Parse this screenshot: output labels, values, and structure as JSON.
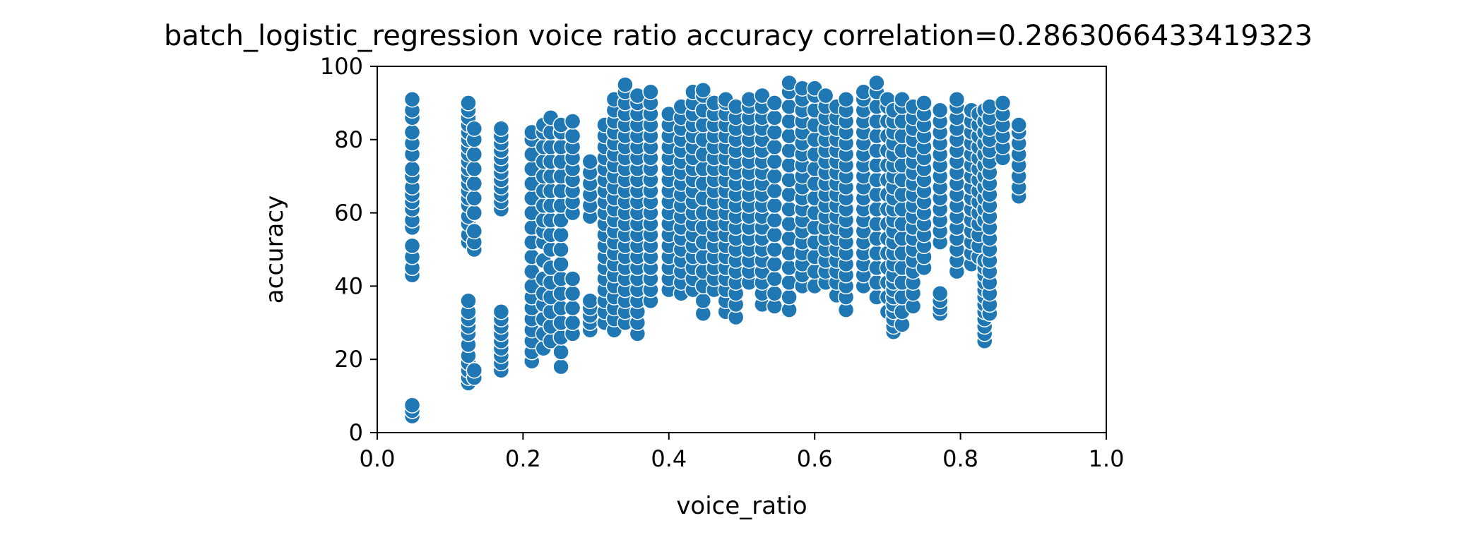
{
  "chart_data": {
    "type": "scatter",
    "title": "batch_logistic_regression voice ratio accuracy correlation=0.2863066433419323",
    "xlabel": "voice_ratio",
    "ylabel": "accuracy",
    "xlim": [
      0.0,
      1.0
    ],
    "ylim": [
      0,
      100
    ],
    "xticks": [
      "0.0",
      "0.2",
      "0.4",
      "0.6",
      "0.8",
      "1.0"
    ],
    "yticks": [
      "0",
      "20",
      "40",
      "60",
      "80",
      "100"
    ],
    "grid": false,
    "legend": "none",
    "colors": {
      "point": "#1f77b4",
      "point_edge": "#ffffff",
      "axes": "#000000"
    },
    "columns": [
      {
        "x": 0.048,
        "y": [
          4.5,
          6,
          7.5,
          43,
          45,
          48,
          51,
          56,
          58,
          61,
          63,
          65,
          67,
          70,
          72,
          76,
          79,
          82,
          86,
          88,
          91
        ]
      },
      {
        "x": 0.125,
        "y": [
          13.5,
          15,
          17,
          19,
          21,
          24,
          27,
          29,
          31,
          33,
          36,
          52,
          54,
          57,
          59,
          62,
          64,
          66,
          68,
          70,
          72,
          74,
          76,
          78,
          80,
          82,
          84,
          86,
          88,
          90
        ]
      },
      {
        "x": 0.133,
        "y": [
          15,
          17,
          50,
          52,
          55,
          60,
          64,
          68,
          72,
          76,
          80,
          83
        ]
      },
      {
        "x": 0.17,
        "y": [
          17,
          19,
          21,
          23,
          25,
          27,
          29,
          31,
          33,
          61,
          63,
          65,
          67,
          69,
          71,
          73,
          75,
          77,
          79,
          81,
          83
        ]
      },
      {
        "x": 0.212,
        "y": [
          19.5,
          22,
          25,
          28,
          31,
          34,
          37,
          40,
          44,
          48,
          52,
          56,
          60,
          64,
          68,
          72,
          76,
          80,
          82
        ]
      },
      {
        "x": 0.228,
        "y": [
          23,
          27,
          31,
          35,
          38,
          42,
          47,
          52,
          55,
          58,
          62,
          66,
          70,
          74,
          78,
          82,
          84
        ]
      },
      {
        "x": 0.238,
        "y": [
          25,
          29,
          33,
          37,
          41,
          45,
          50,
          54,
          58,
          62,
          66,
          70,
          74,
          78,
          82,
          86
        ]
      },
      {
        "x": 0.252,
        "y": [
          18,
          22,
          26,
          30,
          34,
          38,
          42,
          46,
          50,
          54,
          58,
          62,
          66,
          70,
          74,
          78,
          82,
          84
        ]
      },
      {
        "x": 0.268,
        "y": [
          27,
          30,
          34,
          38,
          42,
          60,
          63,
          66,
          69,
          72,
          75,
          78,
          81,
          85
        ]
      },
      {
        "x": 0.292,
        "y": [
          28,
          30,
          32,
          34,
          36,
          59,
          62,
          65,
          68,
          71,
          74
        ]
      },
      {
        "x": 0.312,
        "y": [
          30,
          33,
          36,
          39,
          42,
          45,
          48,
          51,
          54,
          57,
          60,
          63,
          66,
          69,
          72,
          75,
          78,
          81,
          84
        ]
      },
      {
        "x": 0.325,
        "y": [
          28,
          31,
          34,
          37,
          40,
          43,
          46,
          49,
          52,
          55,
          58,
          61,
          64,
          67,
          70,
          73,
          76,
          79,
          82,
          85,
          88,
          91
        ]
      },
      {
        "x": 0.34,
        "y": [
          30,
          33,
          36,
          39,
          42,
          45,
          48,
          51,
          54,
          57,
          60,
          63,
          66,
          69,
          72,
          75,
          78,
          81,
          84,
          87,
          90,
          93,
          95
        ]
      },
      {
        "x": 0.357,
        "y": [
          27,
          30,
          33,
          36,
          39,
          42,
          45,
          48,
          51,
          54,
          57,
          60,
          63,
          66,
          69,
          72,
          75,
          78,
          81,
          84,
          87,
          90,
          92
        ]
      },
      {
        "x": 0.375,
        "y": [
          36,
          39,
          42,
          45,
          48,
          51,
          54,
          57,
          60,
          63,
          66,
          69,
          72,
          75,
          78,
          81,
          84,
          87,
          90,
          93
        ]
      },
      {
        "x": 0.4,
        "y": [
          39,
          42,
          45,
          48,
          51,
          54,
          57,
          60,
          63,
          66,
          69,
          72,
          75,
          78,
          81,
          84,
          87
        ]
      },
      {
        "x": 0.417,
        "y": [
          38,
          41,
          44,
          47,
          50,
          53,
          56,
          59,
          62,
          65,
          68,
          71,
          74,
          77,
          80,
          83,
          86,
          89
        ]
      },
      {
        "x": 0.433,
        "y": [
          39,
          42,
          45,
          48,
          51,
          54,
          57,
          60,
          63,
          66,
          69,
          72,
          75,
          78,
          81,
          84,
          87,
          90,
          93
        ]
      },
      {
        "x": 0.447,
        "y": [
          32.5,
          36,
          40,
          44,
          48,
          52,
          56,
          60,
          64,
          68,
          72,
          76,
          80,
          84,
          88,
          92,
          93.5
        ]
      },
      {
        "x": 0.462,
        "y": [
          39,
          42,
          45,
          48,
          51,
          54,
          57,
          60,
          63,
          66,
          69,
          72,
          75,
          78,
          81,
          84,
          87,
          90
        ]
      },
      {
        "x": 0.478,
        "y": [
          33,
          36,
          39,
          42,
          45,
          48,
          51,
          54,
          57,
          60,
          63,
          66,
          69,
          72,
          75,
          78,
          81,
          84,
          87,
          90,
          91
        ]
      },
      {
        "x": 0.492,
        "y": [
          31.5,
          35,
          38,
          41,
          44,
          47,
          50,
          53,
          56,
          59,
          62,
          65,
          68,
          71,
          74,
          77,
          80,
          83,
          86,
          89
        ]
      },
      {
        "x": 0.51,
        "y": [
          41,
          44,
          47,
          50,
          53,
          56,
          59,
          62,
          65,
          68,
          71,
          74,
          77,
          80,
          83,
          86,
          89,
          91
        ]
      },
      {
        "x": 0.528,
        "y": [
          35,
          38,
          41,
          44,
          47,
          50,
          53,
          56,
          59,
          62,
          65,
          68,
          71,
          74,
          77,
          80,
          83,
          86,
          89,
          92
        ]
      },
      {
        "x": 0.545,
        "y": [
          34.5,
          38,
          42,
          46,
          50,
          54,
          58,
          62,
          66,
          70,
          74,
          78,
          82,
          86,
          90
        ]
      },
      {
        "x": 0.565,
        "y": [
          33.5,
          37,
          41,
          45,
          49,
          53,
          57,
          61,
          65,
          69,
          73,
          77,
          81,
          85,
          89,
          93,
          95.5
        ]
      },
      {
        "x": 0.583,
        "y": [
          40,
          43,
          46,
          49,
          52,
          55,
          58,
          61,
          64,
          67,
          70,
          73,
          76,
          79,
          82,
          85,
          88,
          91,
          94
        ]
      },
      {
        "x": 0.6,
        "y": [
          40,
          44,
          48,
          52,
          56,
          60,
          64,
          68,
          72,
          76,
          80,
          84,
          88,
          92,
          94
        ]
      },
      {
        "x": 0.615,
        "y": [
          41,
          44,
          47,
          50,
          53,
          56,
          59,
          62,
          65,
          68,
          71,
          74,
          77,
          80,
          83,
          86,
          89,
          92
        ]
      },
      {
        "x": 0.63,
        "y": [
          37.5,
          41,
          44,
          47,
          50,
          53,
          56,
          59,
          62,
          65,
          68,
          71,
          74,
          77,
          80,
          83,
          86,
          89
        ]
      },
      {
        "x": 0.643,
        "y": [
          33.5,
          37,
          40,
          43,
          46,
          49,
          52,
          55,
          58,
          61,
          64,
          67,
          70,
          73,
          76,
          79,
          82,
          85,
          88,
          91
        ]
      },
      {
        "x": 0.667,
        "y": [
          40,
          43,
          46,
          49,
          52,
          55,
          58,
          61,
          64,
          67,
          70,
          73,
          76,
          79,
          82,
          85,
          88,
          91,
          93
        ]
      },
      {
        "x": 0.685,
        "y": [
          37,
          41,
          45,
          49,
          53,
          57,
          61,
          65,
          69,
          73,
          77,
          81,
          85,
          89,
          93,
          95.5
        ]
      },
      {
        "x": 0.7,
        "y": [
          33,
          37,
          41,
          45,
          49,
          53,
          57,
          61,
          65,
          69,
          73,
          77,
          81,
          85,
          89,
          91
        ]
      },
      {
        "x": 0.708,
        "y": [
          27.5,
          29,
          31,
          33,
          35,
          37,
          39,
          41,
          43,
          46,
          49,
          52,
          55,
          58,
          61,
          64,
          67,
          70,
          73,
          76,
          79,
          82,
          85,
          88
        ]
      },
      {
        "x": 0.72,
        "y": [
          29.5,
          33,
          37,
          41,
          45,
          49,
          53,
          57,
          61,
          65,
          69,
          73,
          77,
          81,
          85,
          89,
          91
        ]
      },
      {
        "x": 0.735,
        "y": [
          34.5,
          38,
          41,
          44,
          47,
          50,
          53,
          56,
          59,
          62,
          65,
          68,
          71,
          74,
          77,
          80,
          83,
          86,
          89
        ]
      },
      {
        "x": 0.75,
        "y": [
          45,
          48,
          51,
          54,
          57,
          60,
          63,
          66,
          69,
          72,
          75,
          78,
          81,
          84,
          87,
          90
        ]
      },
      {
        "x": 0.772,
        "y": [
          32.5,
          34,
          36,
          38,
          52,
          55,
          58,
          61,
          64,
          67,
          70,
          73,
          76,
          79,
          82,
          85,
          88
        ]
      },
      {
        "x": 0.795,
        "y": [
          44,
          47,
          50,
          53,
          56,
          59,
          62,
          65,
          68,
          71,
          74,
          77,
          80,
          83,
          86,
          89,
          91
        ]
      },
      {
        "x": 0.815,
        "y": [
          46,
          49,
          52,
          55,
          58,
          61,
          64,
          67,
          70,
          73,
          76,
          79,
          82,
          85,
          88
        ]
      },
      {
        "x": 0.825,
        "y": [
          48,
          51,
          54,
          57,
          60,
          63,
          66,
          69,
          72,
          75,
          78,
          81,
          84,
          87
        ]
      },
      {
        "x": 0.833,
        "y": [
          25,
          27,
          29,
          31,
          33,
          35,
          37,
          39,
          41,
          43,
          45,
          47,
          58,
          61,
          64,
          67,
          70,
          73,
          76,
          79,
          82,
          85,
          88
        ]
      },
      {
        "x": 0.84,
        "y": [
          32.5,
          35,
          38,
          41,
          44,
          47,
          50,
          53,
          56,
          59,
          62,
          65,
          68,
          71,
          74,
          77,
          80,
          83,
          86,
          89
        ]
      },
      {
        "x": 0.858,
        "y": [
          75,
          78,
          81,
          84,
          87,
          90
        ]
      },
      {
        "x": 0.88,
        "y": [
          64.5,
          67,
          70,
          73,
          76,
          79,
          82,
          84
        ]
      }
    ]
  }
}
